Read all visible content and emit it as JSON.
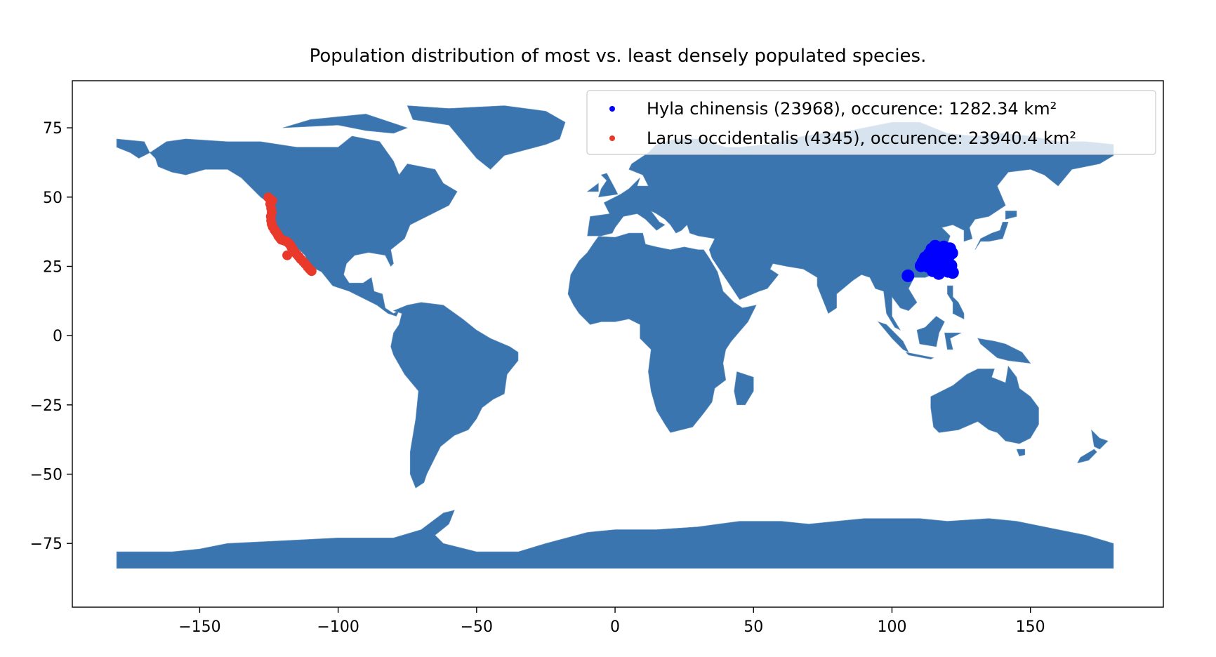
{
  "chart_data": {
    "type": "scatter",
    "title": "Population distribution of most vs. least densely populated species.",
    "xlabel": "",
    "ylabel": "",
    "xlim": [
      -196,
      198
    ],
    "ylim": [
      -98,
      92
    ],
    "xticks": [
      -150,
      -100,
      -50,
      0,
      50,
      100,
      150
    ],
    "yticks": [
      75,
      50,
      25,
      0,
      -25,
      -50,
      -75
    ],
    "xtick_labels": [
      "−150",
      "−100",
      "−50",
      "0",
      "50",
      "100",
      "150"
    ],
    "ytick_labels": [
      "75",
      "50",
      "25",
      "0",
      "−25",
      "−50",
      "−75"
    ],
    "grid": false,
    "legend_position": "top-right",
    "basemap": {
      "name": "world countries",
      "color": "#3b75af"
    },
    "series": [
      {
        "name": "Hyla chinensis (23968), occurence: 1282.34 km²",
        "color": "#0000ff",
        "points": [
          [
            105.8,
            21.6
          ],
          [
            110.5,
            25.2
          ],
          [
            111.2,
            26.5
          ],
          [
            112.0,
            28.1
          ],
          [
            112.6,
            27.0
          ],
          [
            113.0,
            25.0
          ],
          [
            113.5,
            29.5
          ],
          [
            114.0,
            26.3
          ],
          [
            114.4,
            31.2
          ],
          [
            114.8,
            23.4
          ],
          [
            115.2,
            28.7
          ],
          [
            115.6,
            32.3
          ],
          [
            116.0,
            25.6
          ],
          [
            116.4,
            30.0
          ],
          [
            116.8,
            27.4
          ],
          [
            117.2,
            24.1
          ],
          [
            117.6,
            31.6
          ],
          [
            118.0,
            29.1
          ],
          [
            118.3,
            26.2
          ],
          [
            118.7,
            32.0
          ],
          [
            119.0,
            24.7
          ],
          [
            119.4,
            30.5
          ],
          [
            119.8,
            27.8
          ],
          [
            120.2,
            23.2
          ],
          [
            120.6,
            28.9
          ],
          [
            120.9,
            31.4
          ],
          [
            121.3,
            25.3
          ],
          [
            121.6,
            29.8
          ],
          [
            121.9,
            22.8
          ],
          [
            116.9,
            22.4
          ]
        ]
      },
      {
        "name": "Larus occidentalis (4345), occurence: 23940.4 km²",
        "color": "#e8392b",
        "points": [
          [
            -125.2,
            49.9
          ],
          [
            -124.6,
            49.2
          ],
          [
            -123.8,
            48.7
          ],
          [
            -124.5,
            47.5
          ],
          [
            -124.2,
            46.0
          ],
          [
            -124.0,
            44.5
          ],
          [
            -124.3,
            43.0
          ],
          [
            -124.2,
            41.5
          ],
          [
            -124.0,
            40.3
          ],
          [
            -123.6,
            39.2
          ],
          [
            -123.0,
            38.2
          ],
          [
            -122.5,
            37.5
          ],
          [
            -122.0,
            36.8
          ],
          [
            -121.6,
            36.0
          ],
          [
            -121.0,
            35.2
          ],
          [
            -120.5,
            34.6
          ],
          [
            -119.5,
            34.3
          ],
          [
            -118.5,
            33.9
          ],
          [
            -117.8,
            33.3
          ],
          [
            -117.2,
            32.6
          ],
          [
            -116.8,
            31.8
          ],
          [
            -116.2,
            31.0
          ],
          [
            -115.8,
            30.2
          ],
          [
            -115.0,
            29.4
          ],
          [
            -114.2,
            28.5
          ],
          [
            -113.5,
            27.6
          ],
          [
            -112.6,
            26.7
          ],
          [
            -111.8,
            25.8
          ],
          [
            -111.0,
            24.8
          ],
          [
            -110.3,
            24.0
          ],
          [
            -109.6,
            23.3
          ],
          [
            -118.4,
            29.0
          ]
        ]
      }
    ]
  }
}
